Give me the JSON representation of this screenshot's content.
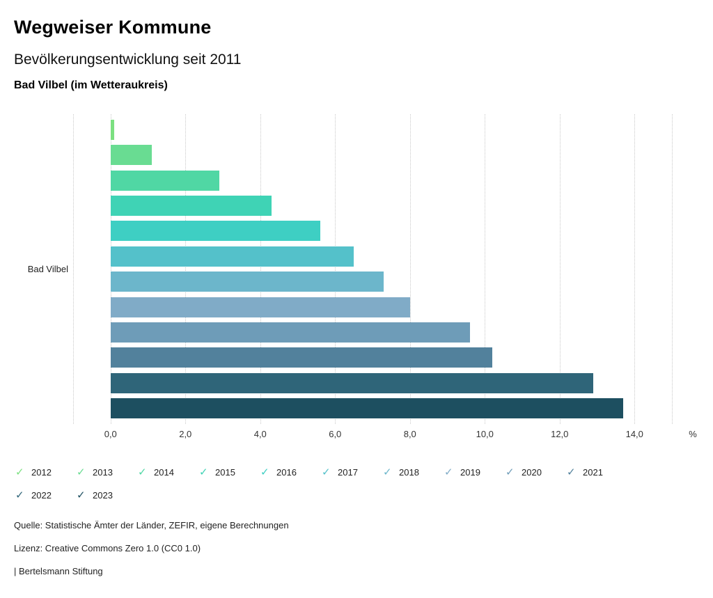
{
  "header": {
    "title": "Wegweiser Kommune",
    "subtitle": "Bevölkerungsentwicklung seit 2011",
    "location": "Bad Vilbel (im Wetteraukreis)"
  },
  "chart_data": {
    "type": "bar",
    "orientation": "horizontal",
    "category": "Bad Vilbel",
    "unit": "%",
    "xlim": [
      -1,
      15
    ],
    "grid": "dotted-vertical",
    "legend_position": "bottom-left",
    "gridline_values": [
      -1,
      0,
      2,
      4,
      6,
      8,
      10,
      12,
      14,
      15
    ],
    "ticks": [
      {
        "value": 0,
        "label": "0,0"
      },
      {
        "value": 2,
        "label": "2,0"
      },
      {
        "value": 4,
        "label": "4,0"
      },
      {
        "value": 6,
        "label": "6,0"
      },
      {
        "value": 8,
        "label": "8,0"
      },
      {
        "value": 10,
        "label": "10,0"
      },
      {
        "value": 12,
        "label": "12,0"
      },
      {
        "value": 14,
        "label": "14,0"
      }
    ],
    "series": [
      {
        "name": "2012",
        "value": 0.1,
        "color": "#7ce081"
      },
      {
        "name": "2013",
        "value": 1.1,
        "color": "#69dc92"
      },
      {
        "name": "2014",
        "value": 2.9,
        "color": "#50d7a4"
      },
      {
        "name": "2015",
        "value": 4.3,
        "color": "#3fd3b5"
      },
      {
        "name": "2016",
        "value": 5.6,
        "color": "#3ecfc3"
      },
      {
        "name": "2017",
        "value": 6.5,
        "color": "#54c1ca"
      },
      {
        "name": "2018",
        "value": 7.3,
        "color": "#6cb6cb"
      },
      {
        "name": "2019",
        "value": 8.0,
        "color": "#80abc7"
      },
      {
        "name": "2020",
        "value": 9.6,
        "color": "#6e9cb8"
      },
      {
        "name": "2021",
        "value": 10.2,
        "color": "#52819c"
      },
      {
        "name": "2022",
        "value": 12.9,
        "color": "#2f6579"
      },
      {
        "name": "2023",
        "value": 13.7,
        "color": "#1d4f60"
      }
    ]
  },
  "footer": {
    "source": "Quelle: Statistische Ämter der Länder, ZEFIR, eigene Berechnungen",
    "license": "Lizenz: Creative Commons Zero 1.0 (CC0 1.0)",
    "brand": "| Bertelsmann Stiftung"
  }
}
